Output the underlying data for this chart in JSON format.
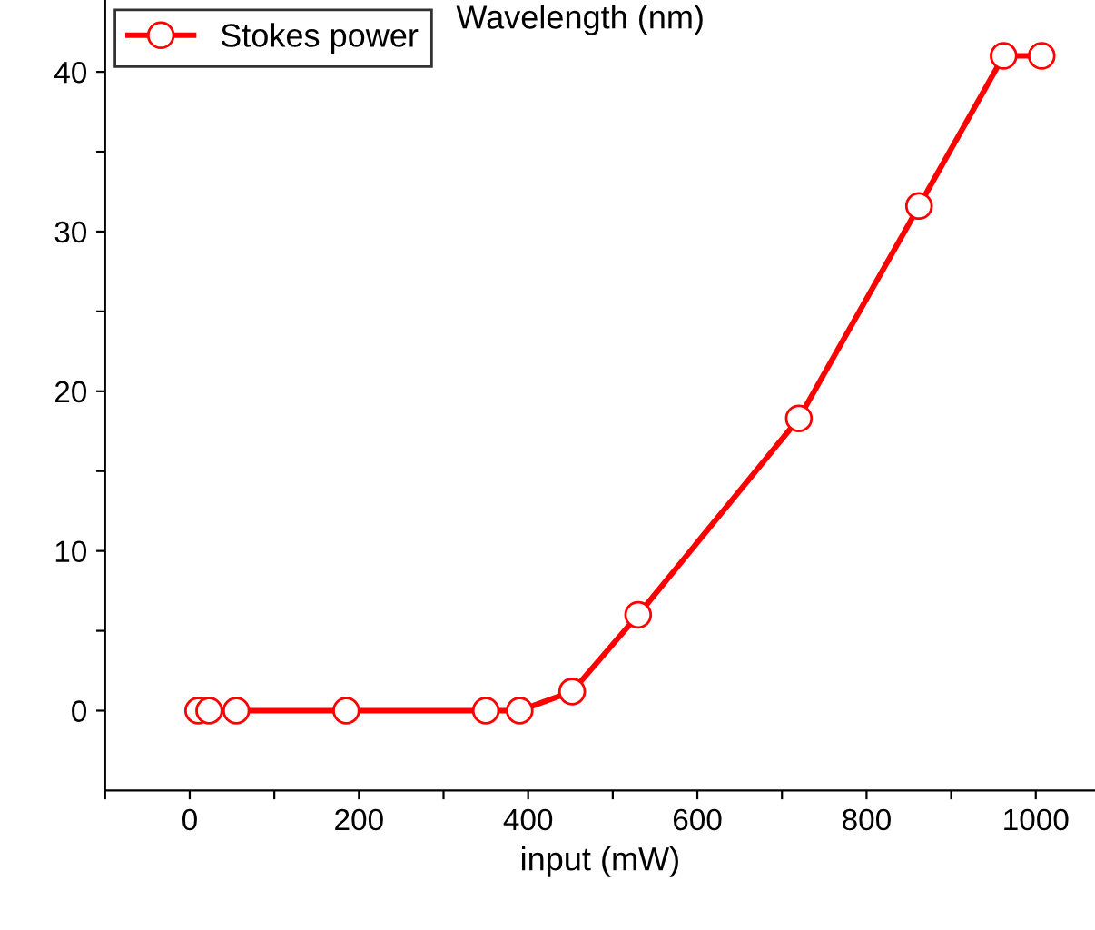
{
  "chart_data": {
    "type": "line",
    "xlabel": "input (mW)",
    "annotations": [
      "Wavelength (nm)"
    ],
    "x": [
      10,
      23,
      55,
      185,
      350,
      390,
      452,
      530,
      720,
      862,
      962,
      1007
    ],
    "series": [
      {
        "name": "Stokes power",
        "color": "#ff0000",
        "values": [
          0,
          0,
          0,
          0,
          0,
          0,
          1.2,
          6,
          18.3,
          31.6,
          41,
          41
        ]
      }
    ],
    "xlim": [
      -100,
      1070
    ],
    "ylim": [
      -5,
      44.5
    ],
    "xticks": [
      {
        "value": -100,
        "label": null
      },
      0,
      {
        "value": 100,
        "label": null
      },
      200,
      {
        "value": 300,
        "label": null
      },
      400,
      {
        "value": 500,
        "label": null
      },
      600,
      {
        "value": 700,
        "label": null
      },
      800,
      {
        "value": 900,
        "label": null
      },
      1000
    ],
    "yticks": [
      0,
      {
        "value": 5,
        "label": null
      },
      10,
      {
        "value": 15,
        "label": null
      },
      20,
      {
        "value": 25,
        "label": null
      },
      30,
      {
        "value": 35,
        "label": null
      },
      40
    ],
    "marker": "circle",
    "line_style": "solid",
    "legend": "top left",
    "grid": false
  }
}
